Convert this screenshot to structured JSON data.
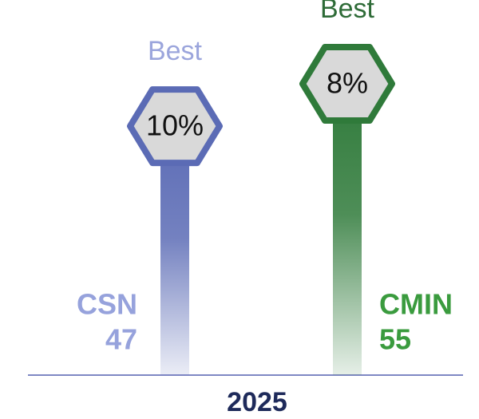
{
  "chart_data": {
    "type": "lollipop",
    "category": "2025",
    "series": [
      {
        "name": "CSN",
        "color": "#5b6bb5",
        "values": [
          47
        ],
        "rate_values": [
          10
        ],
        "rate_labels": [
          "10%"
        ],
        "note": "Best"
      },
      {
        "name": "CMIN",
        "color": "#2f7a3a",
        "values": [
          55
        ],
        "rate_values": [
          8
        ],
        "rate_labels": [
          "8%"
        ],
        "note": "Best"
      }
    ]
  }
}
